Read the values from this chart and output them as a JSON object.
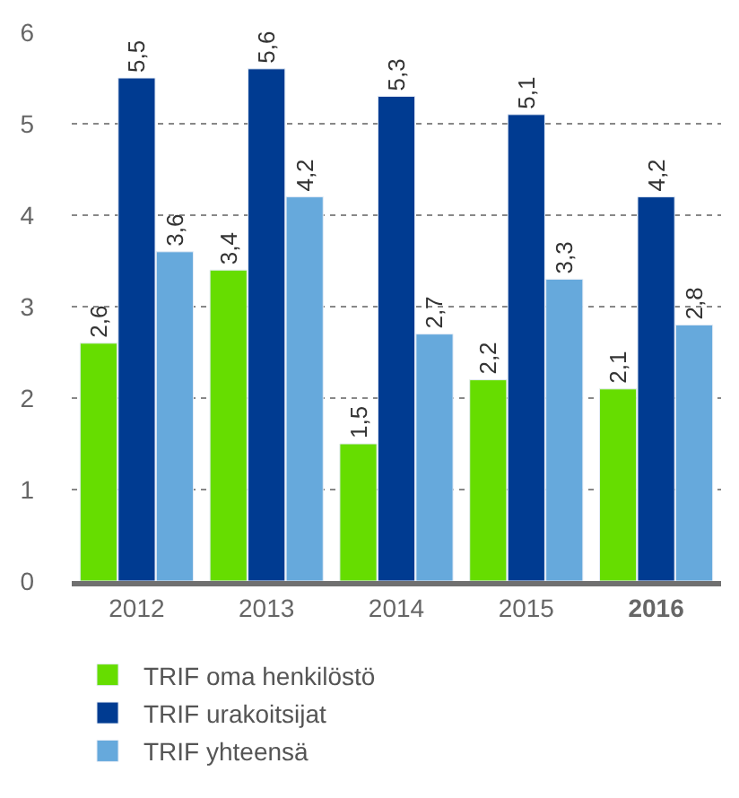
{
  "chart_data": {
    "type": "bar",
    "categories": [
      "2012",
      "2013",
      "2014",
      "2015",
      "2016"
    ],
    "series": [
      {
        "name": "TRIF oma henkilöstö",
        "color": "#66dd00",
        "values": [
          2.6,
          3.4,
          1.5,
          2.2,
          2.1
        ],
        "value_labels": [
          "2,6",
          "3,4",
          "1,5",
          "2,2",
          "2,1"
        ]
      },
      {
        "name": "TRIF urakoitsijat",
        "color": "#003b91",
        "values": [
          5.5,
          5.6,
          5.3,
          5.1,
          4.2
        ],
        "value_labels": [
          "5,5",
          "5,6",
          "5,3",
          "5,1",
          "4,2"
        ]
      },
      {
        "name": "TRIF yhteensä",
        "color": "#66a9dc",
        "values": [
          3.6,
          4.2,
          2.7,
          3.3,
          2.8
        ],
        "value_labels": [
          "3,6",
          "4,2",
          "2,7",
          "3,3",
          "2,8"
        ]
      }
    ],
    "ylim": [
      0,
      6
    ],
    "yticks": [
      0,
      1,
      2,
      3,
      4,
      5,
      6
    ],
    "grid": "y",
    "legend": "bottom"
  }
}
